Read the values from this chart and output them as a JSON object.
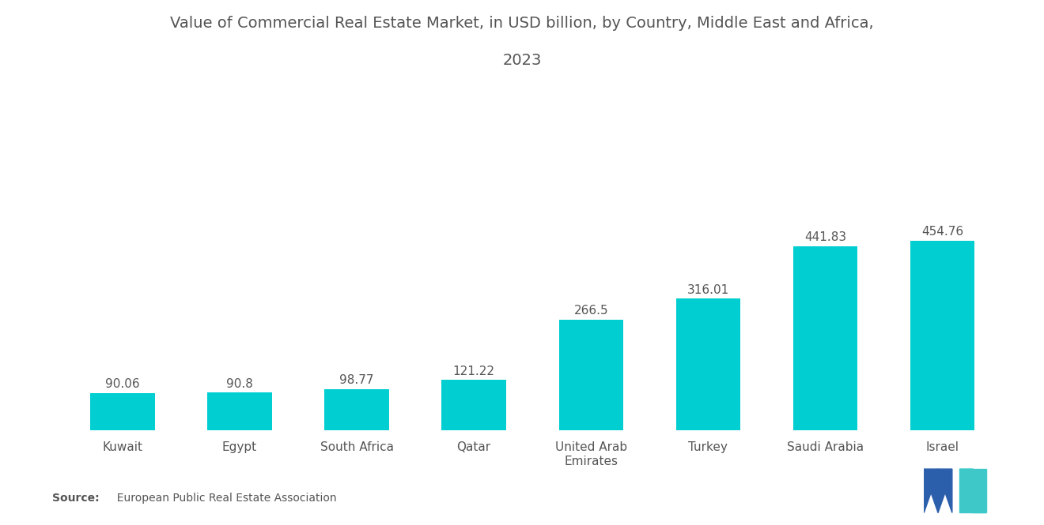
{
  "title_line1": "Value of Commercial Real Estate Market, in USD billion, by Country, Middle East and Africa,",
  "title_line2": "2023",
  "categories": [
    "Kuwait",
    "Egypt",
    "South Africa",
    "Qatar",
    "United Arab\nEmirates",
    "Turkey",
    "Saudi Arabia",
    "Israel"
  ],
  "values": [
    90.06,
    90.8,
    98.77,
    121.22,
    266.5,
    316.01,
    441.83,
    454.76
  ],
  "labels": [
    "90.06",
    "90.8",
    "98.77",
    "121.22",
    "266.5",
    "316.01",
    "441.83",
    "454.76"
  ],
  "bar_color": "#00CED1",
  "background_color": "#ffffff",
  "title_fontsize": 14,
  "label_fontsize": 11,
  "tick_fontsize": 11,
  "source_bold": "Source:",
  "source_normal": "  European Public Real Estate Association",
  "ylim": [
    0,
    680
  ],
  "bar_width": 0.55,
  "logo_blue": "#2B5FAC",
  "logo_teal": "#3EC8C8"
}
